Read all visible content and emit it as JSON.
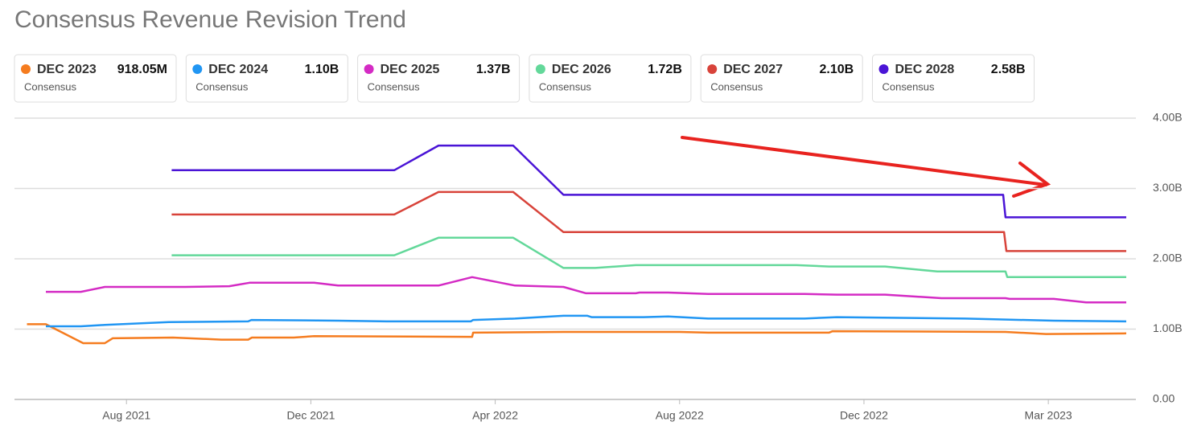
{
  "chart_data": {
    "type": "line",
    "title": "Consensus Revenue Revision Trend",
    "xlim": [
      -2.43,
      21.9
    ],
    "xticks": [
      {
        "value": 0,
        "label": "Aug 2021"
      },
      {
        "value": 4,
        "label": "Dec 2021"
      },
      {
        "value": 8,
        "label": "Apr 2022"
      },
      {
        "value": 12,
        "label": "Aug 2022"
      },
      {
        "value": 16,
        "label": "Dec 2022"
      },
      {
        "value": 20,
        "label": "Mar 2023"
      }
    ],
    "ylim": [
      0,
      4
    ],
    "yticks": [
      {
        "value": 0,
        "label": "0.00"
      },
      {
        "value": 1,
        "label": "1.00B"
      },
      {
        "value": 2,
        "label": "2.00B"
      },
      {
        "value": 3,
        "label": "3.00B"
      },
      {
        "value": 4,
        "label": "4.00B"
      }
    ],
    "grid": true,
    "series": [
      {
        "name": "DEC 2023",
        "sublabel": "Consensus",
        "color": "#f57c1f",
        "latest": {
          "value": 0.91805,
          "label": "918.05M"
        },
        "x": [
          -2.16,
          -1.75,
          -0.94,
          -0.47,
          -0.3,
          1.01,
          2.06,
          2.64,
          2.72,
          3.63,
          4.07,
          7.5,
          7.52,
          9.48,
          12.0,
          12.62,
          15.24,
          15.32,
          19.07,
          19.95,
          21.69
        ],
        "values": [
          1.07,
          1.07,
          0.8,
          0.8,
          0.87,
          0.88,
          0.85,
          0.85,
          0.88,
          0.88,
          0.9,
          0.89,
          0.95,
          0.96,
          0.96,
          0.95,
          0.95,
          0.97,
          0.96,
          0.93,
          0.94
        ]
      },
      {
        "name": "DEC 2024",
        "sublabel": "Consensus",
        "color": "#2196f3",
        "latest": {
          "value": 1.1,
          "label": "1.10B"
        },
        "x": [
          -1.75,
          -0.99,
          -0.47,
          0.92,
          2.64,
          2.71,
          4.59,
          5.64,
          7.47,
          7.52,
          8.43,
          9.48,
          10.0,
          10.09,
          11.22,
          11.75,
          12.62,
          14.71,
          15.41,
          18.2,
          20.12,
          21.69
        ],
        "values": [
          1.04,
          1.04,
          1.06,
          1.1,
          1.11,
          1.13,
          1.12,
          1.11,
          1.11,
          1.13,
          1.15,
          1.19,
          1.19,
          1.17,
          1.17,
          1.18,
          1.15,
          1.15,
          1.17,
          1.15,
          1.12,
          1.11
        ]
      },
      {
        "name": "DEC 2025",
        "sublabel": "Consensus",
        "color": "#d42bc4",
        "latest": {
          "value": 1.37,
          "label": "1.37B"
        },
        "x": [
          -1.75,
          -0.99,
          -0.47,
          1.27,
          2.23,
          2.67,
          4.07,
          4.59,
          6.77,
          7.5,
          8.43,
          9.48,
          9.97,
          11.05,
          11.13,
          11.75,
          12.62,
          14.71,
          15.41,
          16.46,
          17.68,
          19.07,
          19.16,
          20.12,
          20.82,
          21.69
        ],
        "values": [
          1.53,
          1.53,
          1.6,
          1.6,
          1.61,
          1.66,
          1.66,
          1.62,
          1.62,
          1.74,
          1.62,
          1.6,
          1.51,
          1.51,
          1.52,
          1.52,
          1.5,
          1.5,
          1.49,
          1.49,
          1.44,
          1.44,
          1.43,
          1.43,
          1.38,
          1.38
        ]
      },
      {
        "name": "DEC 2026",
        "sublabel": "Consensus",
        "color": "#63d89a",
        "latest": {
          "value": 1.72,
          "label": "1.72B"
        },
        "x": [
          0.98,
          5.81,
          6.77,
          8.39,
          9.48,
          10.17,
          11.05,
          14.54,
          15.24,
          16.46,
          17.59,
          19.07,
          19.11,
          21.69
        ],
        "values": [
          2.05,
          2.05,
          2.3,
          2.3,
          1.87,
          1.87,
          1.91,
          1.91,
          1.89,
          1.89,
          1.82,
          1.82,
          1.74,
          1.74
        ]
      },
      {
        "name": "DEC 2027",
        "sublabel": "Consensus",
        "color": "#d8433a",
        "latest": {
          "value": 2.1,
          "label": "2.10B"
        },
        "x": [
          0.98,
          5.81,
          6.77,
          8.39,
          9.48,
          19.04,
          19.09,
          21.69
        ],
        "values": [
          2.63,
          2.63,
          2.95,
          2.95,
          2.38,
          2.38,
          2.11,
          2.11
        ]
      },
      {
        "name": "DEC 2028",
        "sublabel": "Consensus",
        "color": "#4a14d6",
        "latest": {
          "value": 2.58,
          "label": "2.58B"
        },
        "x": [
          0.98,
          5.81,
          6.77,
          8.39,
          9.48,
          19.02,
          19.07,
          21.69
        ],
        "values": [
          3.26,
          3.26,
          3.61,
          3.61,
          2.91,
          2.91,
          2.59,
          2.59
        ]
      }
    ]
  }
}
